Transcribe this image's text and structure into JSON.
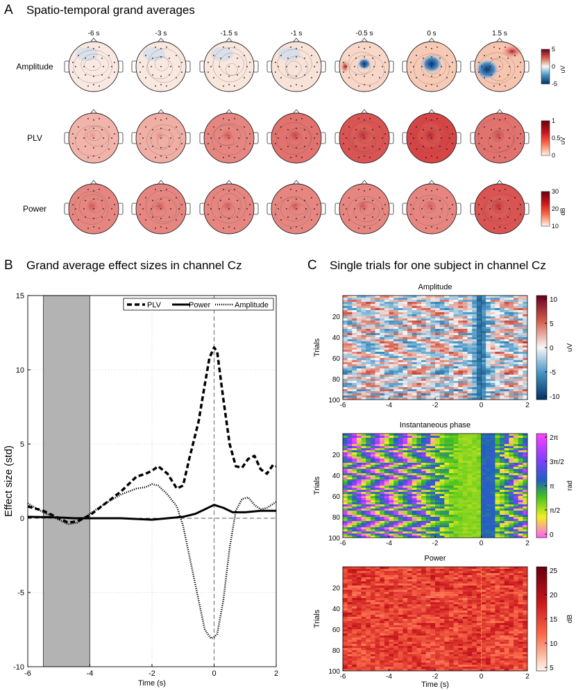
{
  "panel_a": {
    "letter": "A",
    "title": "Spatio-temporal grand averages",
    "times": [
      "-6 s",
      "-3 s",
      "-1.5 s",
      "-1 s",
      "-0.5 s",
      "0 s",
      "1.5 s"
    ],
    "rows": [
      {
        "label": "Amplitude",
        "cmap": "div",
        "unit": "uV",
        "ticks": [
          "5",
          "0",
          "-5"
        ],
        "intensity": [
          0.15,
          0.18,
          0.22,
          0.28,
          0.55,
          0.85,
          0.95
        ]
      },
      {
        "label": "PLV",
        "cmap": "seq",
        "unit": "uV",
        "ticks": [
          "1",
          "0.5",
          "0"
        ],
        "intensity": [
          0.22,
          0.25,
          0.45,
          0.55,
          0.7,
          0.78,
          0.55
        ]
      },
      {
        "label": "Power",
        "cmap": "seq",
        "unit": "dB",
        "ticks": [
          "30",
          "20",
          "10"
        ],
        "intensity": [
          0.45,
          0.45,
          0.45,
          0.45,
          0.45,
          0.45,
          0.7
        ]
      }
    ]
  },
  "panel_b": {
    "letter": "B",
    "title": "Grand average effect sizes in channel Cz",
    "chart_data": {
      "type": "line",
      "title": "Grand average effect sizes in channel Cz",
      "xlabel": "Time (s)",
      "ylabel": "Effect size (std)",
      "xlim": [
        -6,
        2
      ],
      "ylim": [
        -10,
        15
      ],
      "xticks": [
        "-6",
        "-4",
        "-2",
        "0",
        "2"
      ],
      "yticks": [
        "15",
        "10",
        "5",
        "0",
        "-5",
        "-10"
      ],
      "shaded_region": [
        -5.5,
        -4
      ],
      "legend": [
        "PLV",
        "Power",
        "Amplitude"
      ],
      "series": [
        {
          "name": "PLV",
          "style": "dashed",
          "x": [
            -6,
            -5.5,
            -5,
            -4.7,
            -4.4,
            -4,
            -3.5,
            -3,
            -2.5,
            -2.2,
            -2,
            -1.8,
            -1.5,
            -1.2,
            -1,
            -0.8,
            -0.5,
            -0.3,
            -0.15,
            0,
            0.1,
            0.3,
            0.5,
            0.7,
            0.9,
            1.1,
            1.3,
            1.5,
            1.7,
            1.9,
            2
          ],
          "y": [
            0.8,
            0.5,
            0,
            -0.3,
            -0.2,
            0.2,
            1.0,
            1.8,
            2.8,
            3.0,
            3.2,
            3.5,
            3.0,
            2.0,
            2.2,
            4.0,
            6.5,
            9.0,
            10.8,
            11.5,
            11.2,
            8.0,
            5.0,
            3.5,
            3.4,
            4.0,
            4.2,
            3.3,
            3.0,
            3.6,
            3.5
          ]
        },
        {
          "name": "Power",
          "style": "solid",
          "x": [
            -6,
            -5,
            -4.5,
            -4,
            -3,
            -2,
            -1.5,
            -1,
            -0.6,
            -0.3,
            0,
            0.3,
            0.6,
            1,
            1.5,
            2
          ],
          "y": [
            0.1,
            0.05,
            0.0,
            0.0,
            0.0,
            -0.1,
            0.0,
            0.1,
            0.3,
            0.6,
            0.9,
            0.7,
            0.4,
            0.4,
            0.5,
            0.5
          ]
        },
        {
          "name": "Amplitude",
          "style": "dotted",
          "x": [
            -6,
            -5.5,
            -5,
            -4.7,
            -4.4,
            -4,
            -3.5,
            -3,
            -2.5,
            -2.2,
            -2,
            -1.8,
            -1.5,
            -1.2,
            -1,
            -0.8,
            -0.5,
            -0.3,
            -0.1,
            0,
            0.1,
            0.3,
            0.5,
            0.7,
            0.9,
            1.1,
            1.3,
            1.5,
            1.7,
            2
          ],
          "y": [
            1.0,
            0.4,
            -0.1,
            -0.4,
            -0.3,
            0.3,
            1.0,
            1.6,
            2.0,
            2.1,
            2.3,
            2.2,
            1.6,
            0.8,
            -0.5,
            -2.5,
            -5.5,
            -7.5,
            -8.1,
            -8.0,
            -7.8,
            -5.5,
            -2.0,
            0.5,
            1.3,
            1.4,
            0.9,
            0.6,
            0.7,
            1.1
          ]
        }
      ]
    }
  },
  "panel_c": {
    "letter": "C",
    "title": "Single trials for one subject in channel Cz",
    "xlabel": "Time (s)",
    "ylabel": "Trials",
    "xticks": [
      "-6",
      "-4",
      "-2",
      "0",
      "2"
    ],
    "yticks": [
      "20",
      "40",
      "60",
      "80",
      "100"
    ],
    "plots": [
      {
        "title": "Amplitude",
        "cmap": "div",
        "unit": "uV",
        "cticks": [
          "10",
          "5",
          "0",
          "-5",
          "-10"
        ]
      },
      {
        "title": "Instantaneous phase",
        "cmap": "phase",
        "unit": "rad",
        "cticks": [
          "2π",
          "3π/2",
          "π",
          "π/2",
          "0"
        ]
      },
      {
        "title": "Power",
        "cmap": "seq",
        "unit": "dB",
        "cticks": [
          "25",
          "20",
          "15",
          "10",
          "5"
        ]
      }
    ]
  }
}
